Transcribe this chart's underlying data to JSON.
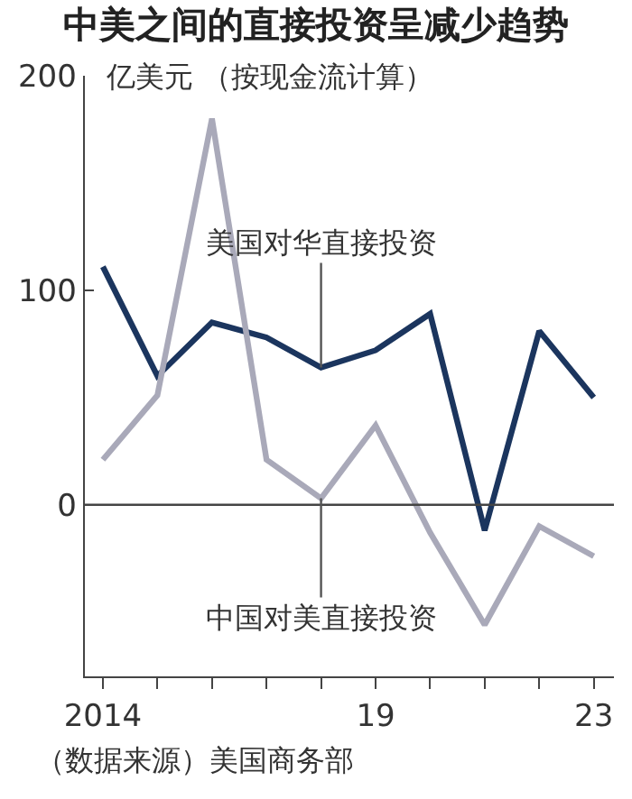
{
  "chart_data": {
    "type": "line",
    "title": "中美之间的直接投资呈减少趋势",
    "ylabel": "亿美元 （按现金流计算）",
    "x": [
      2014,
      2015,
      2016,
      2017,
      2018,
      2019,
      2020,
      2021,
      2022,
      2023
    ],
    "series": [
      {
        "name": "美国对华直接投资",
        "color": "#1b355e",
        "values": [
          111,
          60,
          85,
          78,
          64,
          72,
          89,
          -12,
          81,
          50
        ]
      },
      {
        "name": "中国对美直接投资",
        "color": "#a9a9b9",
        "values": [
          21,
          51,
          180,
          21,
          3,
          37,
          -13,
          -56,
          -10,
          -24
        ]
      }
    ],
    "xlim": [
      2013.67,
      2023.37
    ],
    "xticks": [
      2014,
      {
        "value": 2015,
        "label": null
      },
      {
        "value": 2016,
        "label": null
      },
      {
        "value": 2017,
        "label": null
      },
      {
        "value": 2018,
        "label": null
      },
      {
        "value": 2019,
        "label": "19"
      },
      {
        "value": 2020,
        "label": null
      },
      {
        "value": 2021,
        "label": null
      },
      {
        "value": 2022,
        "label": null
      },
      {
        "value": 2023,
        "label": "23"
      }
    ],
    "ylim": [
      -80,
      200
    ],
    "yticks": [
      0,
      100,
      200
    ],
    "ref_lines": [
      {
        "axis": "y",
        "value": 0,
        "color": "#444444"
      }
    ],
    "grid": false,
    "legend": false,
    "marker": "none",
    "line_style": "solid",
    "annotations": [
      "（数据来源）美国商务部"
    ]
  }
}
